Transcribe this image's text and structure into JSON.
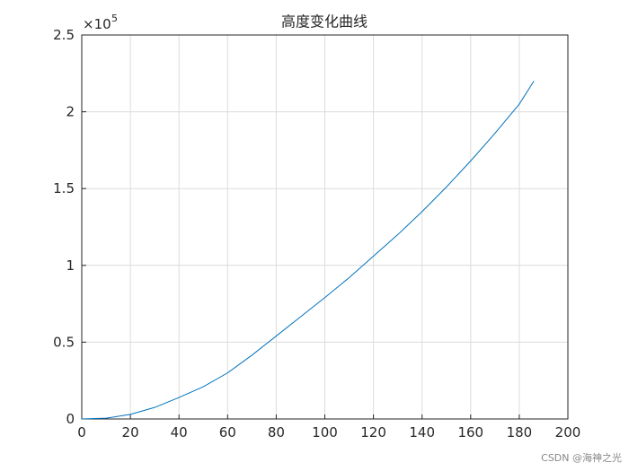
{
  "chart_data": {
    "type": "line",
    "title": "高度变化曲线",
    "x": [
      0,
      10,
      20,
      30,
      40,
      50,
      60,
      70,
      80,
      90,
      100,
      110,
      120,
      130,
      140,
      150,
      160,
      170,
      180,
      186
    ],
    "series": [
      {
        "color": "#0072bd",
        "values": [
          0,
          0.005,
          0.03,
          0.075,
          0.14,
          0.21,
          0.3,
          0.415,
          0.54,
          0.665,
          0.79,
          0.92,
          1.06,
          1.2,
          1.35,
          1.51,
          1.68,
          1.86,
          2.05,
          2.2
        ]
      }
    ],
    "xlim": [
      0,
      200
    ],
    "xticks": [
      0,
      20,
      40,
      60,
      80,
      100,
      120,
      140,
      160,
      180,
      200
    ],
    "ylim": [
      0,
      2.5
    ],
    "yticks": [
      0,
      0.5,
      1,
      1.5,
      2,
      2.5
    ],
    "y_multiplier": {
      "base": "×10",
      "exponent": "5"
    },
    "grid": true
  },
  "watermark": "CSDN @海神之光"
}
